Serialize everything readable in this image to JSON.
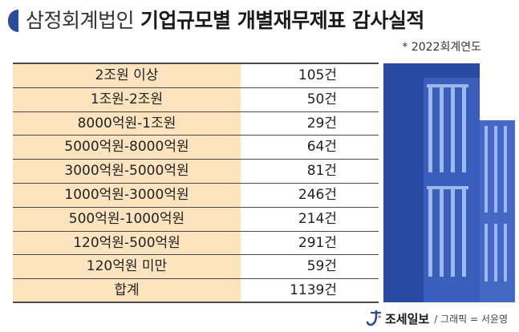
{
  "header": {
    "org": "삼정회계법인",
    "title": "기업규모별 개별재무제표 감사실적",
    "note": "* 2022회계연도"
  },
  "chart_data": {
    "type": "table",
    "categories": [
      "2조원 이상",
      "1조원-2조원",
      "8000억원-1조원",
      "5000억원-8000억원",
      "3000억원-5000억원",
      "1000억원-3000억원",
      "500억원-1000억원",
      "120억원-500억원",
      "120억원 미만"
    ],
    "values": [
      105,
      50,
      29,
      64,
      81,
      246,
      214,
      291,
      59
    ],
    "unit": "건",
    "total": {
      "label": "합계",
      "value": 1139
    }
  },
  "footer": {
    "brand": "조세일보",
    "credit": "/ 그래픽 = 서윤영"
  },
  "icons": {
    "title_marker": "title-marker-icon",
    "logo": "choseilbo-logo-icon",
    "illustration": "building-illustration"
  },
  "colors": {
    "accent": "#2d4b9f",
    "label_bg": "#fde4bf",
    "rule": "#4a4a4a",
    "building_dark": "#2a4aa2",
    "building_face": "#3a5ebc",
    "building_side": "#4468c4",
    "window": "#9bb8ef"
  }
}
